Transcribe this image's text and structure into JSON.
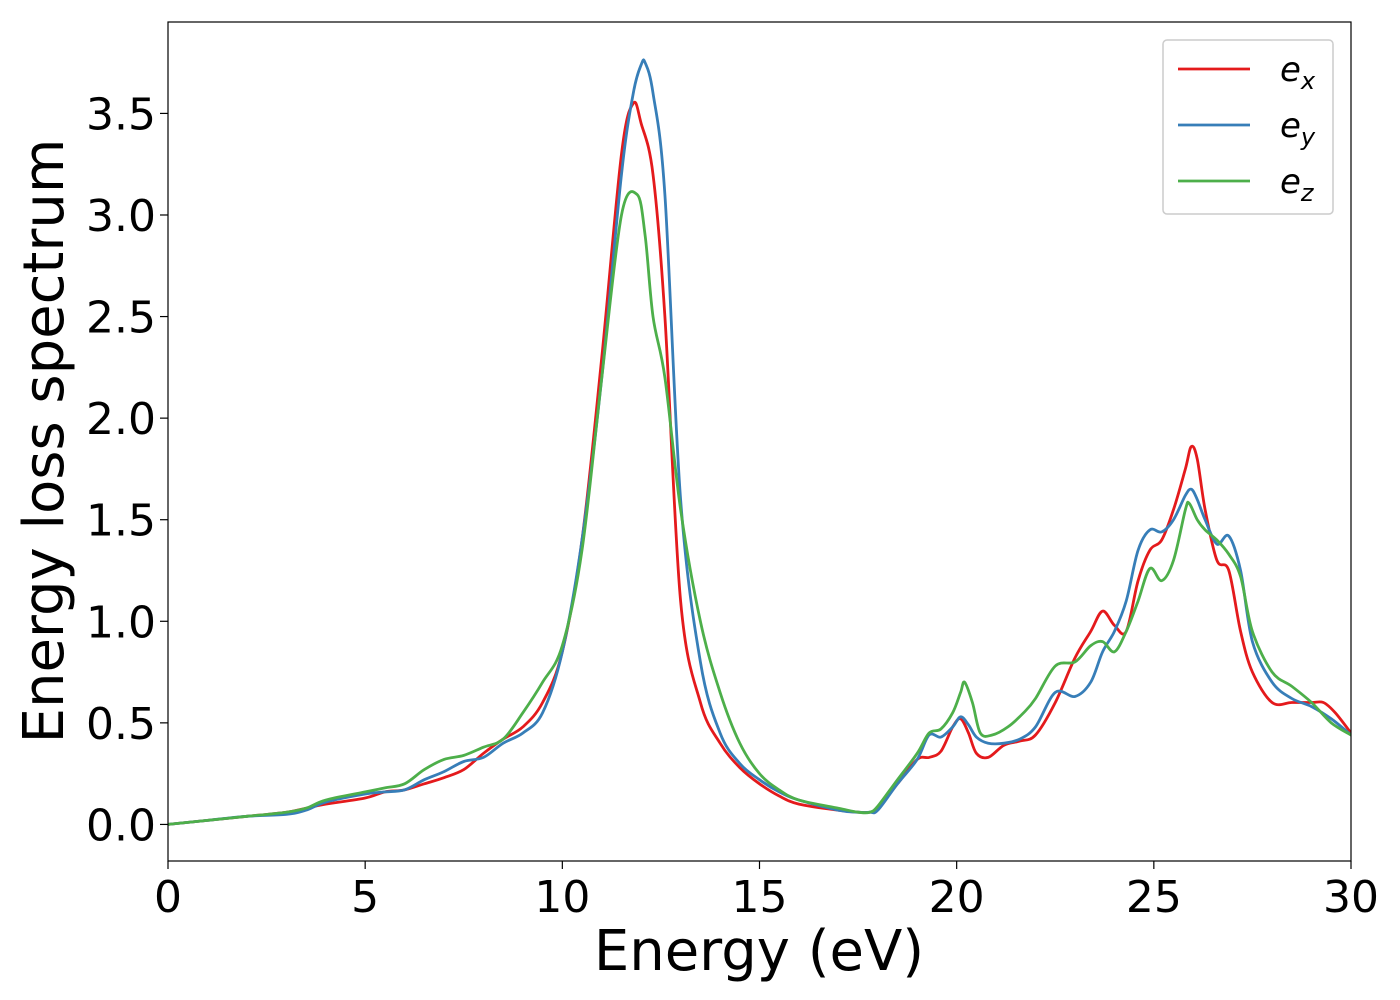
{
  "chart_data": {
    "type": "line",
    "xlabel": "Energy (eV)",
    "ylabel": "Energy loss spectrum",
    "xlim": [
      0,
      30
    ],
    "ylim": [
      -0.18,
      3.95
    ],
    "xticks": [
      0,
      5,
      10,
      15,
      20,
      25,
      30
    ],
    "xtick_labels": [
      "0",
      "5",
      "10",
      "15",
      "20",
      "25",
      "30"
    ],
    "yticks": [
      0.0,
      0.5,
      1.0,
      1.5,
      2.0,
      2.5,
      3.0,
      3.5
    ],
    "ytick_labels": [
      "0.0",
      "0.5",
      "1.0",
      "1.5",
      "2.0",
      "2.5",
      "3.0",
      "3.5"
    ],
    "grid": false,
    "legend_position": "top-right",
    "series": [
      {
        "name": "e_x",
        "legend_main": "e",
        "legend_sub": "x",
        "color": "#e41a1c",
        "x": [
          0,
          1,
          2,
          3,
          3.5,
          4,
          5,
          5.5,
          6,
          6.5,
          7,
          7.5,
          8,
          8.5,
          9,
          9.5,
          10,
          10.5,
          11,
          11.5,
          11.8,
          12,
          12.3,
          12.6,
          13,
          13.5,
          14,
          14.5,
          15,
          15.5,
          16,
          17,
          17.5,
          17.8,
          18,
          18.5,
          19,
          19.3,
          19.6,
          19.9,
          20.1,
          20.3,
          20.5,
          20.8,
          21.2,
          21.6,
          22,
          22.5,
          23,
          23.4,
          23.7,
          24,
          24.3,
          24.6,
          24.9,
          25.2,
          25.5,
          25.8,
          25.95,
          26.1,
          26.3,
          26.6,
          26.9,
          27.2,
          27.5,
          28,
          28.5,
          29,
          29.3,
          29.6,
          30
        ],
        "y": [
          0.0,
          0.02,
          0.04,
          0.06,
          0.08,
          0.1,
          0.13,
          0.16,
          0.17,
          0.2,
          0.23,
          0.27,
          0.35,
          0.42,
          0.48,
          0.6,
          0.85,
          1.4,
          2.3,
          3.3,
          3.55,
          3.45,
          3.2,
          2.5,
          1.1,
          0.6,
          0.4,
          0.28,
          0.2,
          0.14,
          0.1,
          0.07,
          0.06,
          0.06,
          0.08,
          0.2,
          0.32,
          0.33,
          0.36,
          0.48,
          0.52,
          0.45,
          0.35,
          0.33,
          0.39,
          0.41,
          0.44,
          0.6,
          0.82,
          0.95,
          1.05,
          0.98,
          0.95,
          1.2,
          1.35,
          1.4,
          1.55,
          1.75,
          1.86,
          1.8,
          1.55,
          1.3,
          1.25,
          0.95,
          0.75,
          0.6,
          0.6,
          0.6,
          0.6,
          0.55,
          0.45
        ]
      },
      {
        "name": "e_y",
        "legend_main": "e",
        "legend_sub": "y",
        "color": "#377eb8",
        "x": [
          0,
          1,
          2,
          3,
          3.5,
          4,
          5,
          5.5,
          6,
          6.5,
          7,
          7.5,
          8,
          8.5,
          9,
          9.5,
          10,
          10.5,
          11,
          11.5,
          11.8,
          12,
          12.1,
          12.3,
          12.6,
          13,
          13.5,
          14,
          14.5,
          15,
          15.5,
          16,
          17,
          17.5,
          17.8,
          18,
          18.5,
          19,
          19.3,
          19.6,
          19.9,
          20.1,
          20.3,
          20.5,
          20.8,
          21.2,
          21.6,
          22,
          22.5,
          23,
          23.4,
          23.7,
          24,
          24.3,
          24.6,
          24.9,
          25.2,
          25.5,
          25.8,
          25.95,
          26.1,
          26.3,
          26.6,
          26.9,
          27.2,
          27.5,
          28,
          28.5,
          29,
          29.5,
          30
        ],
        "y": [
          0.0,
          0.02,
          0.04,
          0.05,
          0.07,
          0.11,
          0.15,
          0.16,
          0.17,
          0.22,
          0.26,
          0.31,
          0.33,
          0.4,
          0.45,
          0.55,
          0.85,
          1.4,
          2.2,
          3.2,
          3.6,
          3.74,
          3.75,
          3.6,
          3.1,
          1.6,
          0.8,
          0.45,
          0.3,
          0.22,
          0.16,
          0.12,
          0.07,
          0.06,
          0.06,
          0.07,
          0.2,
          0.32,
          0.44,
          0.43,
          0.48,
          0.53,
          0.49,
          0.43,
          0.4,
          0.4,
          0.42,
          0.48,
          0.65,
          0.63,
          0.7,
          0.85,
          0.95,
          1.1,
          1.35,
          1.45,
          1.44,
          1.5,
          1.62,
          1.65,
          1.6,
          1.5,
          1.38,
          1.42,
          1.25,
          0.9,
          0.7,
          0.62,
          0.58,
          0.52,
          0.44
        ]
      },
      {
        "name": "e_z",
        "legend_main": "e",
        "legend_sub": "z",
        "color": "#4daf4a",
        "x": [
          0,
          1,
          2,
          3,
          3.5,
          4,
          5,
          5.5,
          6,
          6.5,
          7,
          7.5,
          8,
          8.5,
          9,
          9.5,
          10,
          10.5,
          11,
          11.5,
          11.9,
          12.1,
          12.3,
          12.6,
          13,
          13.5,
          14,
          14.5,
          15,
          15.5,
          16,
          17,
          17.5,
          17.8,
          18,
          18.5,
          19,
          19.3,
          19.6,
          19.9,
          20.1,
          20.2,
          20.4,
          20.6,
          20.9,
          21.3,
          21.7,
          22,
          22.5,
          23,
          23.4,
          23.7,
          24,
          24.3,
          24.6,
          24.9,
          25.2,
          25.5,
          25.8,
          25.9,
          26.1,
          26.3,
          26.6,
          26.9,
          27.2,
          27.5,
          28,
          28.5,
          29,
          29.5,
          30
        ],
        "y": [
          0.0,
          0.02,
          0.04,
          0.06,
          0.08,
          0.12,
          0.16,
          0.18,
          0.2,
          0.27,
          0.32,
          0.34,
          0.38,
          0.42,
          0.55,
          0.7,
          0.88,
          1.35,
          2.2,
          3.0,
          3.1,
          2.9,
          2.5,
          2.2,
          1.55,
          1.0,
          0.65,
          0.4,
          0.25,
          0.17,
          0.12,
          0.08,
          0.06,
          0.06,
          0.09,
          0.22,
          0.35,
          0.45,
          0.47,
          0.55,
          0.65,
          0.7,
          0.6,
          0.45,
          0.44,
          0.48,
          0.55,
          0.62,
          0.78,
          0.8,
          0.88,
          0.9,
          0.85,
          0.95,
          1.1,
          1.26,
          1.2,
          1.3,
          1.55,
          1.58,
          1.5,
          1.45,
          1.4,
          1.33,
          1.22,
          0.95,
          0.75,
          0.68,
          0.6,
          0.5,
          0.44
        ]
      }
    ]
  }
}
